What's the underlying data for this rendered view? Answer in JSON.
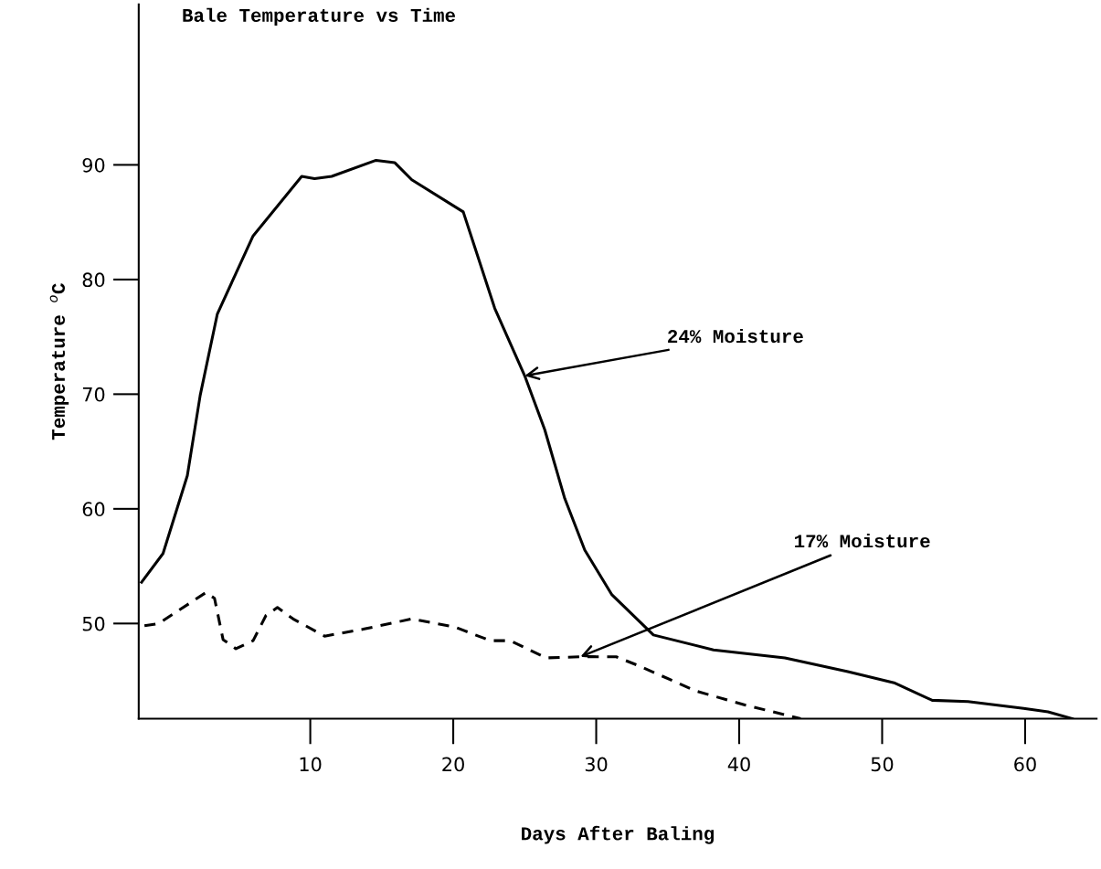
{
  "chart_data": {
    "type": "line",
    "title": "Bale Temperature vs Time",
    "xlabel": "Days After Baling",
    "ylabel": "Temperature $^{o}$C",
    "xlim": [
      -2,
      65
    ],
    "ylim": [
      41.7,
      104
    ],
    "xticks": [
      10,
      20,
      30,
      40,
      50,
      60
    ],
    "yticks": [
      50,
      60,
      70,
      80,
      90
    ],
    "grid": false,
    "legend": false,
    "marker": "none",
    "series": [
      {
        "color": "#000000",
        "line_style": "solid",
        "x": [
          -1.8,
          -0.3,
          1.4,
          2.3,
          3.5,
          6.0,
          9.4,
          10.3,
          11.5,
          14.6,
          15.9,
          17.1,
          20.7,
          22.9,
          25.0,
          26.4,
          27.8,
          29.2,
          31.1,
          34.0,
          38.2,
          43.2,
          47.6,
          50.9,
          53.5,
          56.0,
          59.9,
          61.6,
          63.3
        ],
        "values": [
          53.6,
          56.1,
          62.9,
          69.9,
          77.0,
          83.8,
          89.0,
          88.8,
          89.0,
          90.4,
          90.2,
          88.7,
          85.9,
          77.5,
          71.6,
          66.9,
          60.9,
          56.4,
          52.5,
          49.0,
          47.7,
          47.0,
          45.8,
          44.8,
          43.3,
          43.2,
          42.6,
          42.3,
          41.7
        ]
      },
      {
        "color": "#000000",
        "line_style": "dashed",
        "x": [
          -1.6,
          -0.6,
          2.7,
          3.3,
          3.9,
          4.8,
          6.0,
          6.9,
          7.7,
          8.8,
          11.0,
          13.7,
          17.1,
          20.1,
          22.6,
          24.0,
          26.5,
          28.9,
          31.4,
          33.0,
          37.0,
          40.4,
          44.3
        ],
        "values": [
          49.8,
          50.0,
          52.7,
          52.2,
          48.6,
          47.8,
          48.5,
          50.7,
          51.4,
          50.4,
          48.9,
          49.5,
          50.4,
          49.7,
          48.5,
          48.5,
          47.0,
          47.1,
          47.1,
          46.3,
          44.1,
          42.9,
          41.7
        ]
      }
    ],
    "annotations": [
      {
        "text": "24% Moisture",
        "x": 25.0,
        "y": 71.6
      },
      {
        "text": "17% Moisture",
        "x": 28.9,
        "y": 47.1
      }
    ]
  }
}
